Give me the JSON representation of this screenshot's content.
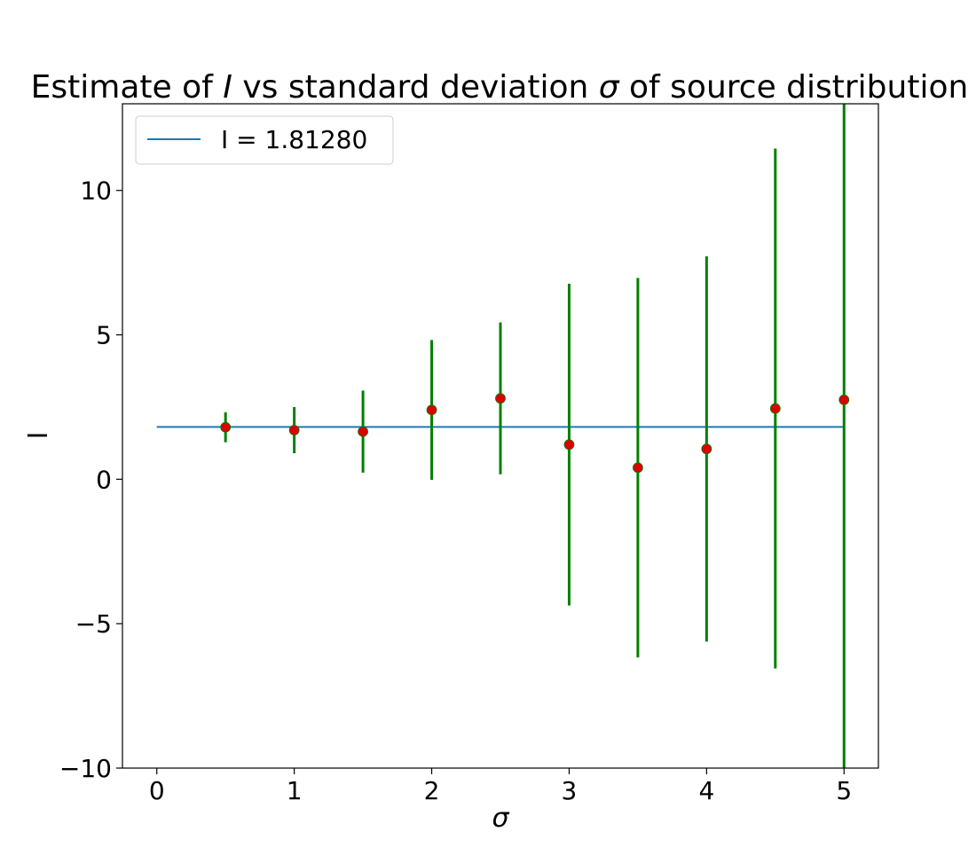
{
  "chart_data": {
    "type": "scatter",
    "title_prefix": "Estimate of ",
    "title_symbol": "I",
    "title_middle": " vs standard deviation ",
    "title_symbol2": "σ",
    "title_suffix": " of source distribution",
    "xlabel": "σ",
    "ylabel": "I",
    "xlim": [
      -0.25,
      5.25
    ],
    "ylim": [
      -10,
      13
    ],
    "xticks": [
      0,
      1,
      2,
      3,
      4,
      5
    ],
    "xtick_labels": [
      "0",
      "1",
      "2",
      "3",
      "4",
      "5"
    ],
    "yticks": [
      -10,
      -5,
      0,
      5,
      10
    ],
    "ytick_labels": [
      "−10",
      "−5",
      "0",
      "5",
      "10"
    ],
    "grid": false,
    "legend_position": "upper-left",
    "reference_line": {
      "label": "I = 1.81280",
      "value": 1.8128,
      "x_range": [
        0,
        5
      ],
      "color": "#1f77b4"
    },
    "points": {
      "x": [
        0.5,
        1.0,
        1.5,
        2.0,
        2.5,
        3.0,
        3.5,
        4.0,
        4.5,
        5.0
      ],
      "y": [
        1.8,
        1.7,
        1.65,
        2.4,
        2.8,
        1.2,
        0.4,
        1.05,
        2.45,
        2.75
      ],
      "yerr": [
        0.52,
        0.8,
        1.42,
        2.42,
        2.63,
        5.57,
        6.57,
        6.67,
        9.0,
        14.0
      ],
      "marker_color": "#dd0000",
      "errorbar_color": "#008000"
    }
  }
}
